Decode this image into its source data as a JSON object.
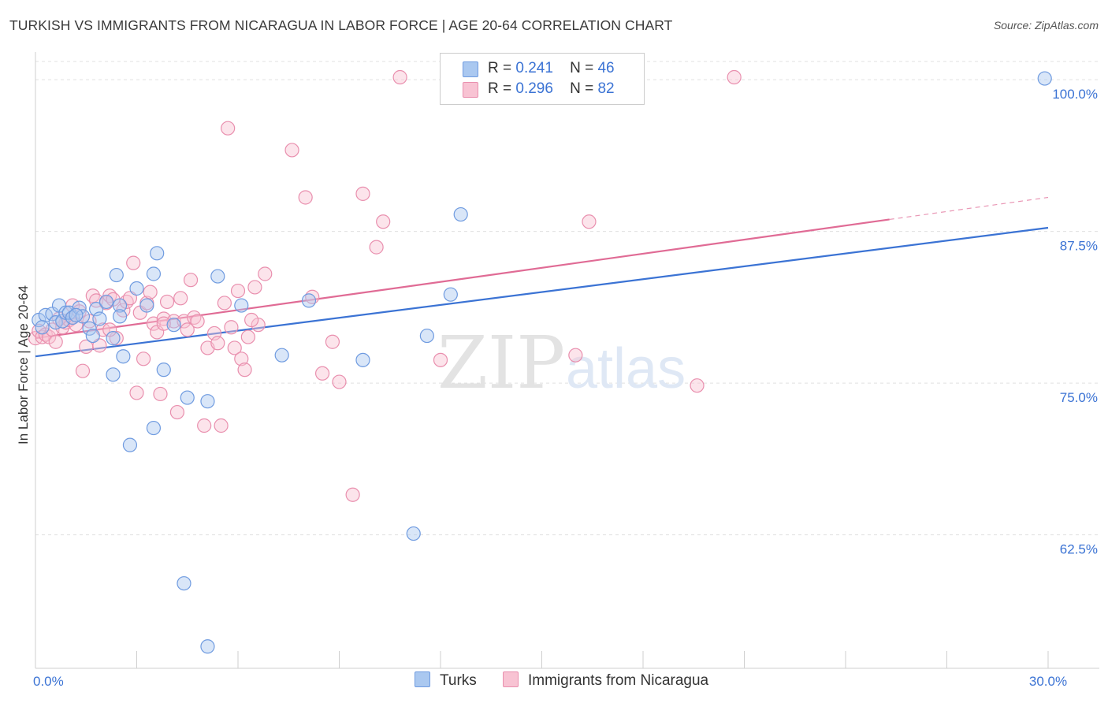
{
  "title": "TURKISH VS IMMIGRANTS FROM NICARAGUA IN LABOR FORCE | AGE 20-64 CORRELATION CHART",
  "source": "Source: ZipAtlas.com",
  "watermark": {
    "zip": "ZIP",
    "atlas": "atlas"
  },
  "colors": {
    "blue_fill": "#aac8f0",
    "blue_stroke": "#6f9be0",
    "blue_line": "#3b73d4",
    "pink_fill": "#f8c3d3",
    "pink_stroke": "#e98fae",
    "pink_line": "#e06b95",
    "axis_label": "#3b73d4",
    "grid": "#e0e0e0"
  },
  "legend": {
    "rows": [
      {
        "r_label": "R =",
        "r_value": "0.241",
        "n_label": "N =",
        "n_value": "46"
      },
      {
        "r_label": "R =",
        "r_value": "0.296",
        "n_label": "N =",
        "n_value": "82"
      }
    ]
  },
  "bottom_legend": [
    "Turks",
    "Immigrants from Nicaragua"
  ],
  "chart_data": {
    "type": "scatter",
    "title": "TURKISH VS IMMIGRANTS FROM NICARAGUA IN LABOR FORCE | AGE 20-64 CORRELATION CHART",
    "xlabel": "",
    "ylabel": "In Labor Force | Age 20-64",
    "xlim": [
      0,
      30
    ],
    "ylim": [
      51.5,
      101.5
    ],
    "x_tick_labels": [
      {
        "value": 0,
        "label": "0.0%"
      },
      {
        "value": 30,
        "label": "30.0%"
      }
    ],
    "y_ticks": [
      {
        "value": 100,
        "label": "100.0%"
      },
      {
        "value": 87.5,
        "label": "87.5%"
      },
      {
        "value": 75,
        "label": "75.0%"
      },
      {
        "value": 62.5,
        "label": "62.5%"
      }
    ],
    "grid": true,
    "series": [
      {
        "name": "Turks",
        "color": "blue",
        "trend": {
          "x": [
            0,
            30
          ],
          "y": [
            77.2,
            87.8
          ],
          "dashed_from": null
        },
        "points": [
          [
            0.1,
            80.2
          ],
          [
            0.3,
            80.6
          ],
          [
            0.5,
            80.7
          ],
          [
            0.6,
            80.0
          ],
          [
            0.7,
            81.4
          ],
          [
            0.8,
            80.1
          ],
          [
            0.9,
            80.8
          ],
          [
            1.0,
            80.8
          ],
          [
            1.1,
            80.4
          ],
          [
            1.3,
            81.2
          ],
          [
            1.4,
            80.5
          ],
          [
            1.6,
            79.5
          ],
          [
            1.7,
            78.9
          ],
          [
            1.8,
            81.1
          ],
          [
            1.9,
            80.3
          ],
          [
            2.1,
            81.7
          ],
          [
            2.3,
            78.7
          ],
          [
            2.3,
            75.7
          ],
          [
            2.4,
            83.9
          ],
          [
            2.5,
            81.4
          ],
          [
            2.6,
            77.2
          ],
          [
            2.8,
            69.9
          ],
          [
            3.0,
            82.8
          ],
          [
            3.3,
            81.4
          ],
          [
            3.5,
            71.3
          ],
          [
            3.5,
            84.0
          ],
          [
            3.6,
            85.7
          ],
          [
            3.8,
            76.1
          ],
          [
            4.1,
            79.8
          ],
          [
            4.4,
            58.5
          ],
          [
            4.5,
            73.8
          ],
          [
            5.1,
            73.5
          ],
          [
            5.4,
            83.8
          ],
          [
            5.1,
            53.3
          ],
          [
            6.1,
            81.4
          ],
          [
            7.3,
            77.3
          ],
          [
            8.1,
            81.8
          ],
          [
            9.7,
            76.9
          ],
          [
            11.2,
            62.6
          ],
          [
            11.6,
            78.9
          ],
          [
            12.3,
            82.3
          ],
          [
            12.6,
            88.9
          ],
          [
            29.9,
            100.1
          ],
          [
            2.5,
            80.5
          ],
          [
            0.2,
            79.6
          ],
          [
            1.2,
            80.6
          ]
        ]
      },
      {
        "name": "Immigrants from Nicaragua",
        "color": "pink",
        "trend": {
          "x": [
            0,
            30
          ],
          "y": [
            78.7,
            90.3
          ],
          "dashed_from": 25.3
        },
        "points": [
          [
            0.0,
            78.7
          ],
          [
            0.1,
            79.3
          ],
          [
            0.2,
            78.8
          ],
          [
            0.3,
            79.0
          ],
          [
            0.4,
            78.8
          ],
          [
            0.5,
            79.4
          ],
          [
            0.6,
            78.4
          ],
          [
            0.8,
            79.6
          ],
          [
            0.9,
            80.0
          ],
          [
            1.0,
            80.2
          ],
          [
            1.1,
            81.4
          ],
          [
            1.2,
            79.8
          ],
          [
            1.4,
            76.0
          ],
          [
            1.5,
            78.0
          ],
          [
            1.6,
            80.1
          ],
          [
            1.7,
            82.2
          ],
          [
            1.8,
            81.8
          ],
          [
            1.9,
            78.1
          ],
          [
            2.0,
            79.4
          ],
          [
            2.1,
            81.6
          ],
          [
            2.2,
            82.2
          ],
          [
            2.3,
            81.9
          ],
          [
            2.4,
            78.7
          ],
          [
            2.6,
            81.0
          ],
          [
            2.7,
            81.7
          ],
          [
            2.8,
            82.0
          ],
          [
            2.9,
            84.9
          ],
          [
            3.0,
            74.2
          ],
          [
            3.1,
            80.8
          ],
          [
            3.3,
            81.6
          ],
          [
            3.4,
            82.5
          ],
          [
            3.5,
            79.9
          ],
          [
            3.6,
            79.2
          ],
          [
            3.7,
            74.1
          ],
          [
            3.8,
            80.3
          ],
          [
            3.9,
            81.7
          ],
          [
            4.1,
            80.1
          ],
          [
            4.2,
            72.6
          ],
          [
            4.3,
            82.0
          ],
          [
            4.4,
            80.1
          ],
          [
            4.6,
            83.5
          ],
          [
            4.7,
            80.4
          ],
          [
            4.8,
            80.1
          ],
          [
            5.0,
            71.5
          ],
          [
            5.1,
            77.9
          ],
          [
            5.3,
            79.1
          ],
          [
            5.4,
            78.3
          ],
          [
            5.5,
            71.5
          ],
          [
            5.6,
            81.6
          ],
          [
            5.8,
            79.6
          ],
          [
            5.9,
            77.9
          ],
          [
            6.0,
            82.6
          ],
          [
            6.1,
            77.0
          ],
          [
            6.2,
            76.1
          ],
          [
            6.3,
            78.8
          ],
          [
            6.5,
            82.9
          ],
          [
            6.6,
            79.8
          ],
          [
            6.8,
            84.0
          ],
          [
            5.7,
            96.0
          ],
          [
            7.6,
            94.2
          ],
          [
            8.0,
            90.3
          ],
          [
            8.2,
            82.1
          ],
          [
            8.5,
            75.8
          ],
          [
            8.8,
            78.4
          ],
          [
            9.0,
            75.1
          ],
          [
            9.4,
            65.8
          ],
          [
            9.7,
            90.6
          ],
          [
            10.1,
            86.2
          ],
          [
            10.3,
            88.3
          ],
          [
            10.8,
            100.2
          ],
          [
            12.0,
            76.9
          ],
          [
            16.0,
            77.3
          ],
          [
            16.4,
            88.3
          ],
          [
            19.6,
            74.8
          ],
          [
            20.7,
            100.2
          ],
          [
            4.5,
            79.4
          ],
          [
            3.2,
            77.0
          ],
          [
            2.2,
            79.4
          ],
          [
            0.7,
            80.3
          ],
          [
            1.3,
            80.9
          ],
          [
            3.8,
            79.9
          ],
          [
            6.4,
            80.2
          ]
        ]
      }
    ]
  }
}
